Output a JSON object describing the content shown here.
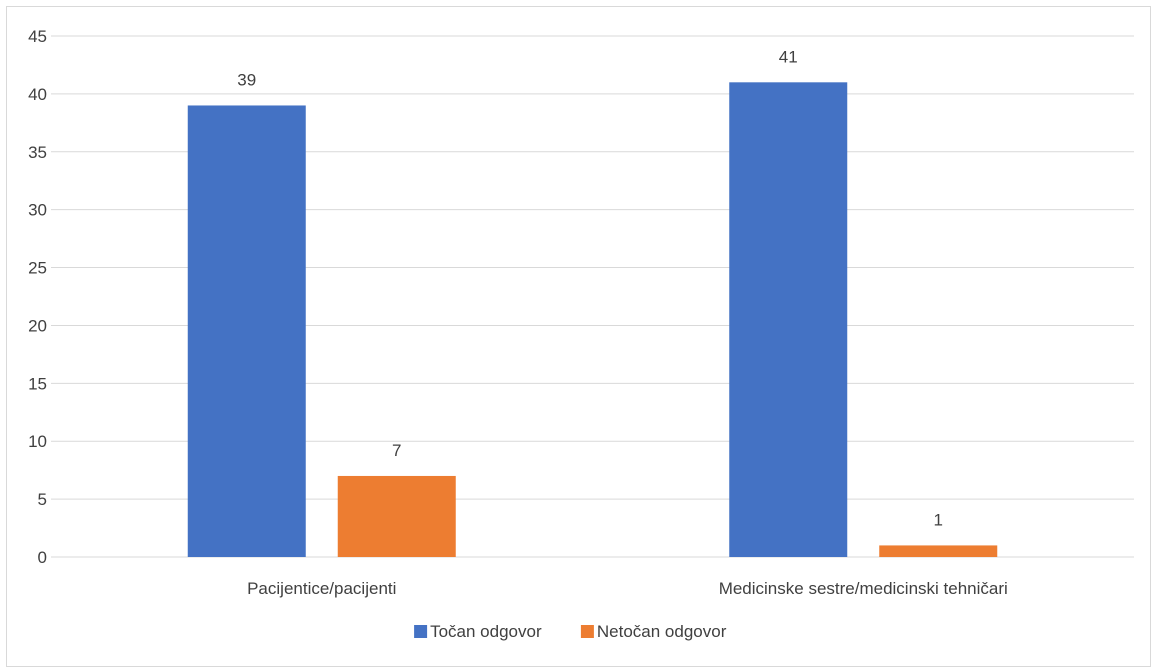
{
  "chart_data": {
    "type": "bar",
    "categories": [
      "Pacijentice/pacijenti",
      "Medicinske sestre/medicinski tehničari"
    ],
    "series": [
      {
        "name": "Točan odgovor",
        "values": [
          39,
          41
        ],
        "color": "#4472c4"
      },
      {
        "name": "Netočan odgovor",
        "values": [
          7,
          1
        ],
        "color": "#ed7d31"
      }
    ],
    "ylim": [
      0,
      45
    ],
    "yticks": [
      0,
      5,
      10,
      15,
      20,
      25,
      30,
      35,
      40,
      45
    ],
    "data_labels": true,
    "grid": true,
    "legend_position": "bottom"
  }
}
